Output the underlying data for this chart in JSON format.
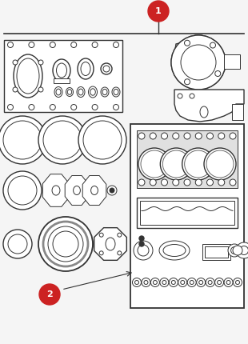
{
  "bg_color": "#f5f5f5",
  "fig_bg": "#f5f5f5",
  "gasket_color": "#333333",
  "red_circle_color": "#cc2222",
  "white": "#ffffff",
  "gray_fill": "#e0e0e0"
}
